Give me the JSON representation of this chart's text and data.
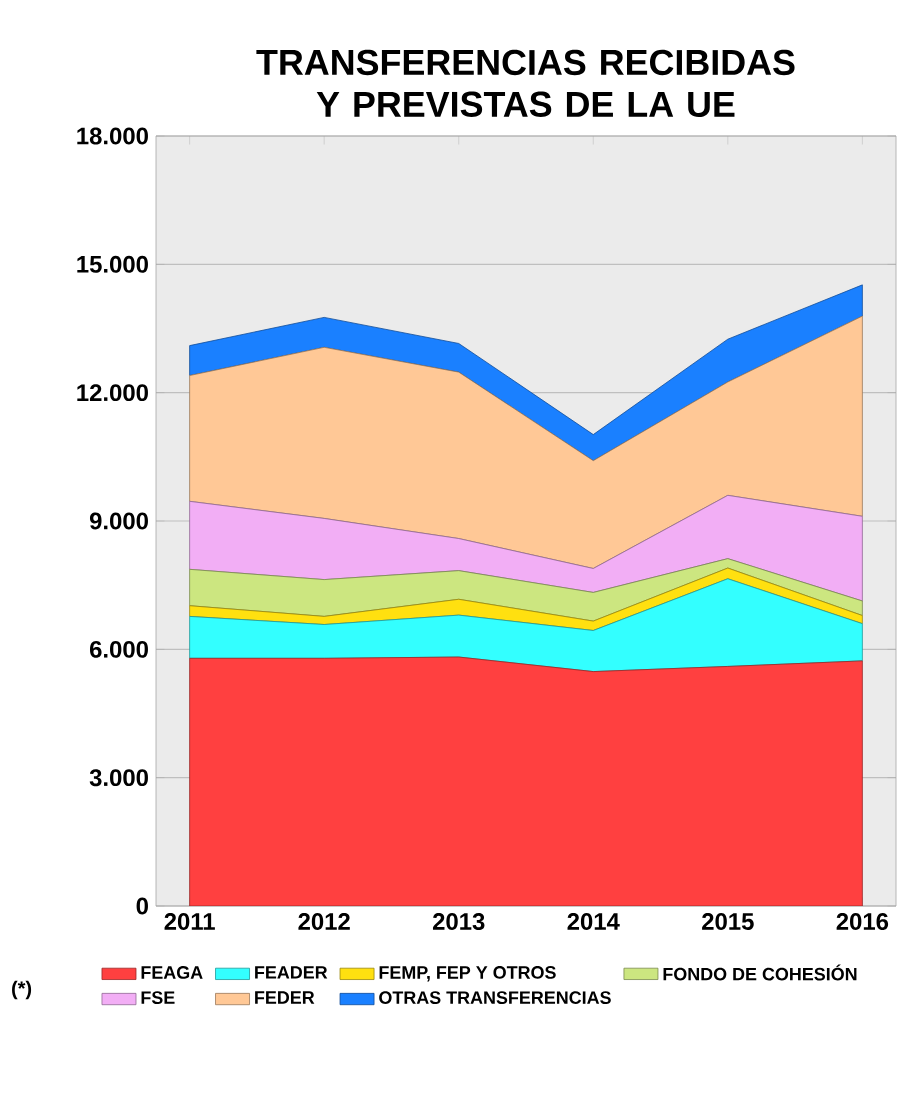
{
  "chart_data": {
    "type": "area",
    "stacked": true,
    "title": "TRANSFERENCIAS RECIBIDAS Y PREVISTAS DE LA UE",
    "x": [
      2011,
      2012,
      2013,
      2014,
      2015,
      2016
    ],
    "series": [
      {
        "name": "FEAGA",
        "color": "#ff4040",
        "values": [
          5790,
          5790,
          5820,
          5480,
          5600,
          5730
        ]
      },
      {
        "name": "FEADER",
        "color": "#33ffff",
        "values": [
          980,
          790,
          980,
          960,
          2050,
          870
        ]
      },
      {
        "name": "FEMP, FEP Y OTROS",
        "color": "#ffe010",
        "values": [
          250,
          190,
          370,
          220,
          250,
          190
        ]
      },
      {
        "name": "FONDO DE COHESIÓN",
        "color": "#cce680",
        "values": [
          850,
          860,
          670,
          670,
          220,
          340
        ]
      },
      {
        "name": "FSE",
        "color": "#f2aef5",
        "values": [
          1590,
          1430,
          750,
          560,
          1480,
          1980
        ]
      },
      {
        "name": "FEDER",
        "color": "#ffc896",
        "values": [
          2940,
          4000,
          3890,
          2520,
          2650,
          4680
        ]
      },
      {
        "name": "OTRAS TRANSFERENCIAS",
        "color": "#1a80ff",
        "values": [
          700,
          700,
          670,
          610,
          1000,
          730
        ]
      }
    ],
    "xlim": [
      2010.75,
      2016.25
    ],
    "xticks": [
      2011,
      2012,
      2013,
      2014,
      2015,
      2016
    ],
    "ylim": [
      0,
      18000
    ],
    "yticks": [
      0,
      {
        "value": 3000,
        "label": "3.000"
      },
      {
        "value": 6000,
        "label": "6.000"
      },
      {
        "value": 9000,
        "label": "9.000"
      },
      {
        "value": 12000,
        "label": "12.000"
      },
      {
        "value": 15000,
        "label": "15.000"
      },
      {
        "value": 18000,
        "label": "18.000"
      }
    ],
    "grid": "y",
    "legend": "bottom",
    "annotations": [
      "(*)"
    ]
  }
}
